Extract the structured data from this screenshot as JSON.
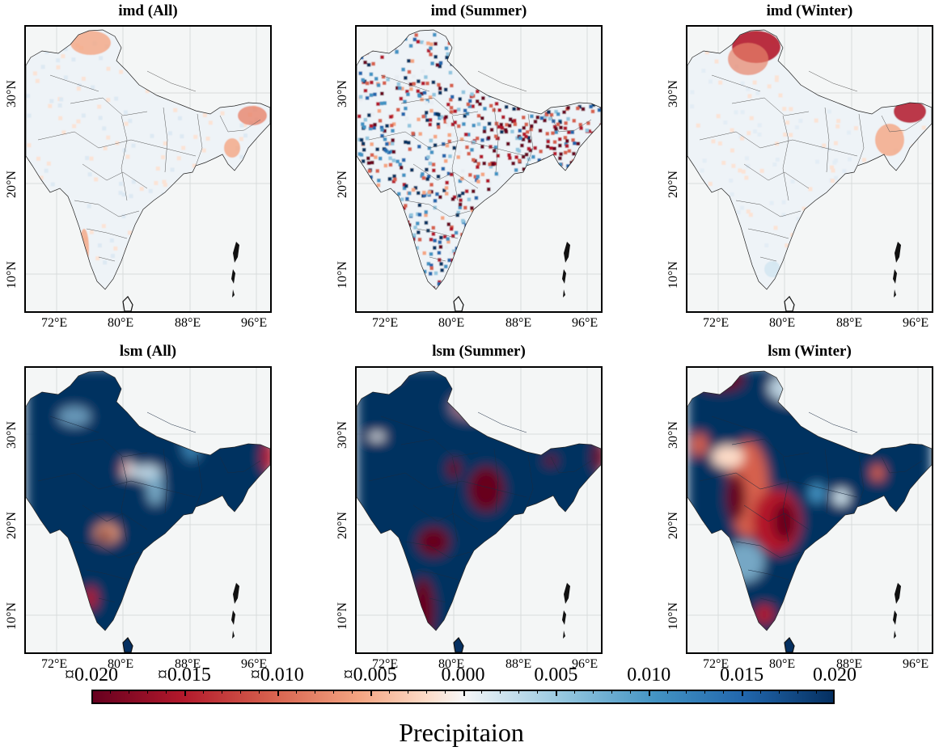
{
  "figure": {
    "panels": [
      {
        "title": "imd (All)",
        "style": "imd-all"
      },
      {
        "title": "imd (Summer)",
        "style": "imd-summer"
      },
      {
        "title": "imd (Winter)",
        "style": "imd-winter"
      },
      {
        "title": "lsm (All)",
        "style": "lsm-all"
      },
      {
        "title": "lsm (Summer)",
        "style": "lsm-summer"
      },
      {
        "title": "lsm (Winter)",
        "style": "lsm-winter"
      }
    ],
    "lon_ticks": [
      "72°E",
      "80°E",
      "88°E",
      "96°E"
    ],
    "lat_ticks": [
      "30°N",
      "20°N",
      "10°N"
    ],
    "colorbar": {
      "title": "Precipitaion",
      "labels": [
        "¤0.020",
        "¤0.015",
        "¤0.010",
        "¤0.005",
        "0.000",
        "0.005",
        "0.010",
        "0.015",
        "0.020"
      ],
      "range": [
        -0.02,
        0.02
      ],
      "colormap": "RdBu",
      "colors": [
        "#67001f",
        "#b2182b",
        "#d6604d",
        "#f4a582",
        "#fddbc7",
        "#f7f7f7",
        "#d1e5f0",
        "#92c5de",
        "#4393c3",
        "#2166ac",
        "#053061"
      ]
    }
  }
}
